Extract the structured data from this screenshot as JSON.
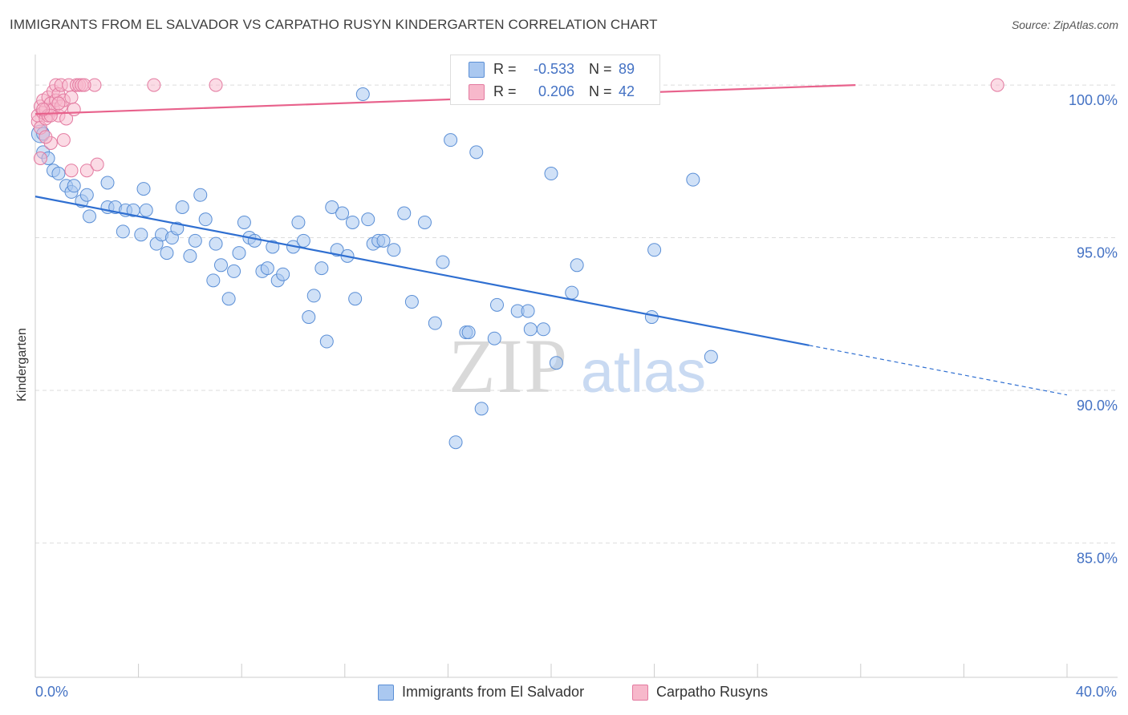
{
  "title": "IMMIGRANTS FROM EL SALVADOR VS CARPATHO RUSYN KINDERGARTEN CORRELATION CHART",
  "source": "Source: ZipAtlas.com",
  "watermark": {
    "zip": "ZIP",
    "atlas": "atlas"
  },
  "legend": {
    "rows": [
      {
        "r_label": "R =",
        "r_value": "-0.533",
        "n_label": "N =",
        "n_value": "89"
      },
      {
        "r_label": "R =",
        "r_value": "0.206",
        "n_label": "N =",
        "n_value": "42"
      }
    ]
  },
  "colors": {
    "blue_fill": "#aac8f0",
    "blue_stroke": "#5b8fd6",
    "blue_line": "#2f6fd1",
    "pink_fill": "#f7b8cb",
    "pink_stroke": "#e37aa0",
    "pink_line": "#e8628c",
    "axis_label": "#4472c4",
    "grid": "#dddddd"
  },
  "chart_data": {
    "type": "scatter",
    "xlabel": "",
    "ylabel": "Kindergarten",
    "xlim": [
      0,
      40
    ],
    "ylim": [
      80.6,
      101.0
    ],
    "x_tick_labels": [
      "0.0%",
      "40.0%"
    ],
    "y_ticks": [
      {
        "value": 100,
        "label": "100.0%"
      },
      {
        "value": 95,
        "label": "95.0%"
      },
      {
        "value": 90,
        "label": "90.0%"
      },
      {
        "value": 85,
        "label": "85.0%"
      }
    ],
    "grid": "horizontal dashed",
    "legend_position": "bottom",
    "series": [
      {
        "name": "Immigrants from El Salvador",
        "color": "#5b8fd6",
        "r": -0.533,
        "n": 89,
        "trend": {
          "x0": 0,
          "y0": 96.35,
          "x_solid_end": 30.0,
          "x1": 40,
          "y1": 89.85
        },
        "points": [
          [
            0.2,
            98.4
          ],
          [
            0.3,
            97.8
          ],
          [
            0.5,
            97.6
          ],
          [
            0.7,
            97.2
          ],
          [
            0.9,
            97.1
          ],
          [
            1.2,
            96.7
          ],
          [
            1.4,
            96.5
          ],
          [
            1.5,
            96.7
          ],
          [
            1.8,
            96.2
          ],
          [
            2.0,
            96.4
          ],
          [
            2.1,
            95.7
          ],
          [
            2.8,
            96.8
          ],
          [
            2.8,
            96.0
          ],
          [
            3.1,
            96.0
          ],
          [
            3.4,
            95.2
          ],
          [
            3.5,
            95.9
          ],
          [
            3.8,
            95.9
          ],
          [
            4.1,
            95.1
          ],
          [
            4.2,
            96.6
          ],
          [
            4.3,
            95.9
          ],
          [
            4.7,
            94.8
          ],
          [
            4.9,
            95.1
          ],
          [
            5.1,
            94.5
          ],
          [
            5.3,
            95.0
          ],
          [
            5.5,
            95.3
          ],
          [
            5.7,
            96.0
          ],
          [
            6.0,
            94.4
          ],
          [
            6.2,
            94.9
          ],
          [
            6.4,
            96.4
          ],
          [
            6.6,
            95.6
          ],
          [
            6.9,
            93.6
          ],
          [
            7.0,
            94.8
          ],
          [
            7.2,
            94.1
          ],
          [
            7.5,
            93.0
          ],
          [
            7.7,
            93.9
          ],
          [
            7.9,
            94.5
          ],
          [
            8.1,
            95.5
          ],
          [
            8.3,
            95.0
          ],
          [
            8.5,
            94.9
          ],
          [
            8.8,
            93.9
          ],
          [
            9.0,
            94.0
          ],
          [
            9.2,
            94.7
          ],
          [
            9.4,
            93.6
          ],
          [
            9.6,
            93.8
          ],
          [
            10.0,
            94.7
          ],
          [
            10.2,
            95.5
          ],
          [
            10.4,
            94.9
          ],
          [
            10.6,
            92.4
          ],
          [
            10.8,
            93.1
          ],
          [
            11.1,
            94.0
          ],
          [
            11.3,
            91.6
          ],
          [
            11.5,
            96.0
          ],
          [
            11.7,
            94.6
          ],
          [
            11.9,
            95.8
          ],
          [
            12.1,
            94.4
          ],
          [
            12.3,
            95.5
          ],
          [
            12.4,
            93.0
          ],
          [
            12.7,
            99.7
          ],
          [
            12.9,
            95.6
          ],
          [
            13.1,
            94.8
          ],
          [
            13.3,
            94.9
          ],
          [
            13.5,
            94.9
          ],
          [
            13.9,
            94.6
          ],
          [
            14.3,
            95.8
          ],
          [
            14.6,
            92.9
          ],
          [
            15.1,
            95.5
          ],
          [
            15.5,
            92.2
          ],
          [
            15.8,
            94.2
          ],
          [
            16.1,
            98.2
          ],
          [
            16.3,
            88.3
          ],
          [
            16.7,
            91.9
          ],
          [
            16.8,
            91.9
          ],
          [
            17.1,
            97.8
          ],
          [
            17.3,
            89.4
          ],
          [
            17.8,
            91.7
          ],
          [
            17.9,
            92.8
          ],
          [
            18.7,
            92.6
          ],
          [
            19.1,
            92.6
          ],
          [
            19.2,
            92.0
          ],
          [
            19.7,
            92.0
          ],
          [
            20.0,
            97.1
          ],
          [
            20.2,
            90.9
          ],
          [
            20.8,
            93.2
          ],
          [
            21.0,
            94.1
          ],
          [
            23.9,
            92.4
          ],
          [
            24.0,
            94.6
          ],
          [
            25.5,
            96.9
          ],
          [
            26.2,
            91.1
          ],
          [
            0.3,
            98.4
          ]
        ]
      },
      {
        "name": "Carpatho Rusyns",
        "color": "#e37aa0",
        "r": 0.206,
        "n": 42,
        "trend": {
          "x0": 0,
          "y0": 99.05,
          "x1": 31.8,
          "y1": 100.0
        },
        "points": [
          [
            0.1,
            98.8
          ],
          [
            0.1,
            99.0
          ],
          [
            0.2,
            99.3
          ],
          [
            0.2,
            98.6
          ],
          [
            0.3,
            99.1
          ],
          [
            0.3,
            99.5
          ],
          [
            0.4,
            99.2
          ],
          [
            0.4,
            98.9
          ],
          [
            0.5,
            99.6
          ],
          [
            0.5,
            99.0
          ],
          [
            0.6,
            99.4
          ],
          [
            0.6,
            98.1
          ],
          [
            0.7,
            99.8
          ],
          [
            0.7,
            99.2
          ],
          [
            0.8,
            100.0
          ],
          [
            0.8,
            99.5
          ],
          [
            0.9,
            99.0
          ],
          [
            0.9,
            99.7
          ],
          [
            1.0,
            100.0
          ],
          [
            1.0,
            99.3
          ],
          [
            1.1,
            99.5
          ],
          [
            1.2,
            98.9
          ],
          [
            1.3,
            100.0
          ],
          [
            1.4,
            99.6
          ],
          [
            1.5,
            99.2
          ],
          [
            1.6,
            100.0
          ],
          [
            1.7,
            100.0
          ],
          [
            1.8,
            100.0
          ],
          [
            2.0,
            97.2
          ],
          [
            2.3,
            100.0
          ],
          [
            2.4,
            97.4
          ],
          [
            4.6,
            100.0
          ],
          [
            7.0,
            100.0
          ],
          [
            37.3,
            100.0
          ],
          [
            0.2,
            97.6
          ],
          [
            0.4,
            98.3
          ],
          [
            1.1,
            98.2
          ],
          [
            1.4,
            97.2
          ],
          [
            0.6,
            99.0
          ],
          [
            1.9,
            100.0
          ],
          [
            0.3,
            99.2
          ],
          [
            0.9,
            99.4
          ]
        ]
      }
    ]
  }
}
